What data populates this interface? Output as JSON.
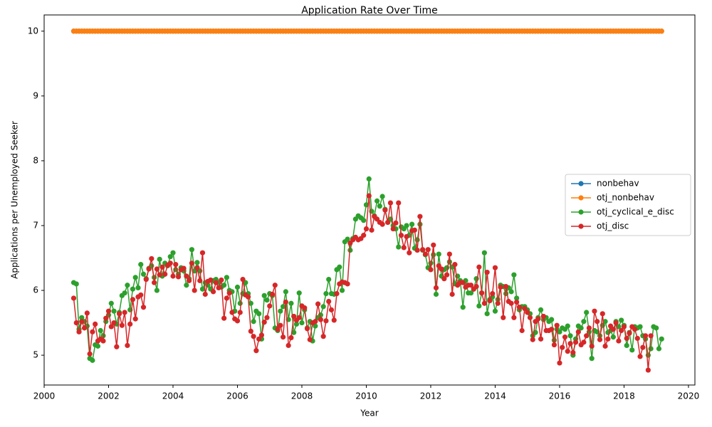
{
  "chart_data": {
    "type": "line",
    "title": "Application Rate Over Time",
    "xlabel": "Year",
    "ylabel": "Applications per Unemployed Seeker",
    "xlim": [
      2000,
      2020.2
    ],
    "ylim": [
      4.54,
      10.25
    ],
    "x_ticks": [
      2000,
      2002,
      2004,
      2006,
      2008,
      2010,
      2012,
      2014,
      2016,
      2018,
      2020
    ],
    "y_ticks": [
      5,
      6,
      7,
      8,
      9,
      10
    ],
    "legend_position": "center-right",
    "grid": false,
    "markers": true,
    "x_start": 2000.917,
    "x_step": 0.08333,
    "series": [
      {
        "name": "nonbehav",
        "color": "#1f77b4",
        "constant": 10.0
      },
      {
        "name": "otj_nonbehav",
        "color": "#ff7f0e",
        "constant": 10.0
      },
      {
        "name": "otj_cyclical_e_disc",
        "color": "#2ca02c",
        "values": [
          6.12,
          6.1,
          5.4,
          5.58,
          5.52,
          5.45,
          4.95,
          4.92,
          5.16,
          5.14,
          5.38,
          5.3,
          5.52,
          5.62,
          5.8,
          5.68,
          5.48,
          5.66,
          5.92,
          5.96,
          6.08,
          5.7,
          6.02,
          6.2,
          6.04,
          6.4,
          6.25,
          6.18,
          6.34,
          6.38,
          6.2,
          6.0,
          6.48,
          6.22,
          6.42,
          6.38,
          6.52,
          6.58,
          6.32,
          6.25,
          6.35,
          6.3,
          6.08,
          6.18,
          6.63,
          6.3,
          6.43,
          6.3,
          6.02,
          6.12,
          6.08,
          6.02,
          6.15,
          6.17,
          6.12,
          6.05,
          6.08,
          6.2,
          6.0,
          5.98,
          5.68,
          6.05,
          5.8,
          5.95,
          6.12,
          5.95,
          5.8,
          5.52,
          5.68,
          5.64,
          5.25,
          5.92,
          5.85,
          5.95,
          5.92,
          5.42,
          5.38,
          5.68,
          5.75,
          5.98,
          5.55,
          5.8,
          5.35,
          5.48,
          5.96,
          5.5,
          5.7,
          5.42,
          5.52,
          5.22,
          5.45,
          5.58,
          5.62,
          5.75,
          5.95,
          6.17,
          5.95,
          5.94,
          6.32,
          6.36,
          6.0,
          6.75,
          6.79,
          6.62,
          6.8,
          7.1,
          7.15,
          7.12,
          7.08,
          7.32,
          7.72,
          7.22,
          7.15,
          7.38,
          7.3,
          7.45,
          7.25,
          7.05,
          7.1,
          7.0,
          6.95,
          6.67,
          6.98,
          6.95,
          7.0,
          6.85,
          7.02,
          6.65,
          6.78,
          7.02,
          6.62,
          6.55,
          6.35,
          6.42,
          6.55,
          5.94,
          6.56,
          6.22,
          6.32,
          6.35,
          6.44,
          6.36,
          6.1,
          6.22,
          6.15,
          5.74,
          6.15,
          5.96,
          5.96,
          6.02,
          6.18,
          5.76,
          5.96,
          6.58,
          5.64,
          5.86,
          5.9,
          5.68,
          5.86,
          6.08,
          6.06,
          5.95,
          6.04,
          5.98,
          6.24,
          5.88,
          5.7,
          5.75,
          5.75,
          5.7,
          5.64,
          5.3,
          5.35,
          5.58,
          5.7,
          5.55,
          5.58,
          5.52,
          5.55,
          5.23,
          5.4,
          5.36,
          5.42,
          5.4,
          5.45,
          5.3,
          5.0,
          5.25,
          5.45,
          5.42,
          5.52,
          5.66,
          5.36,
          4.95,
          5.38,
          5.36,
          5.3,
          5.46,
          5.52,
          5.35,
          5.38,
          5.28,
          5.52,
          5.44,
          5.54,
          5.46,
          5.15,
          5.35,
          5.08,
          5.44,
          5.42,
          5.44,
          5.3,
          5.25,
          5.0,
          5.1,
          5.44,
          5.42,
          5.1,
          5.25
        ]
      },
      {
        "name": "otj_disc",
        "color": "#d62728",
        "values": [
          5.88,
          5.5,
          5.36,
          5.52,
          5.42,
          5.65,
          5.02,
          5.36,
          5.48,
          5.22,
          5.25,
          5.22,
          5.57,
          5.68,
          5.44,
          5.5,
          5.13,
          5.64,
          5.46,
          5.66,
          5.15,
          5.48,
          5.86,
          5.56,
          5.9,
          5.93,
          5.74,
          6.17,
          6.33,
          6.49,
          6.12,
          6.33,
          6.24,
          6.36,
          6.25,
          6.39,
          6.42,
          6.22,
          6.4,
          6.21,
          6.32,
          6.34,
          6.22,
          6.15,
          6.42,
          6.0,
          6.35,
          6.15,
          6.58,
          5.94,
          6.14,
          6.16,
          5.98,
          6.12,
          6.04,
          6.16,
          5.57,
          5.88,
          5.96,
          5.66,
          5.56,
          5.53,
          5.66,
          6.17,
          5.93,
          5.9,
          5.37,
          5.29,
          5.07,
          5.25,
          5.31,
          5.51,
          5.58,
          5.76,
          5.94,
          6.08,
          5.4,
          5.46,
          5.28,
          5.82,
          5.15,
          5.27,
          5.6,
          5.54,
          5.58,
          5.76,
          5.73,
          5.41,
          5.24,
          5.5,
          5.52,
          5.79,
          5.55,
          5.29,
          5.53,
          5.83,
          5.7,
          5.54,
          5.95,
          6.1,
          6.13,
          6.12,
          6.1,
          6.73,
          6.78,
          6.82,
          6.78,
          6.8,
          6.85,
          6.95,
          7.46,
          6.93,
          7.14,
          7.1,
          7.05,
          7.02,
          7.24,
          7.05,
          7.35,
          6.95,
          7.04,
          7.35,
          6.85,
          6.66,
          6.83,
          6.58,
          6.92,
          6.93,
          6.62,
          7.14,
          6.63,
          6.56,
          6.63,
          6.32,
          6.7,
          6.04,
          6.38,
          6.33,
          6.18,
          6.24,
          6.56,
          5.94,
          6.4,
          6.08,
          6.12,
          6.12,
          6.05,
          6.08,
          6.08,
          6.02,
          6.06,
          6.36,
          5.96,
          5.8,
          6.28,
          5.84,
          5.95,
          6.35,
          5.8,
          6.05,
          5.58,
          6.06,
          5.83,
          5.8,
          5.58,
          5.82,
          5.74,
          5.38,
          5.72,
          5.66,
          5.58,
          5.24,
          5.52,
          5.56,
          5.25,
          5.6,
          5.38,
          5.38,
          5.4,
          5.16,
          5.46,
          4.88,
          5.12,
          5.28,
          5.06,
          5.18,
          5.04,
          5.2,
          5.36,
          5.16,
          5.2,
          5.3,
          5.42,
          5.14,
          5.68,
          5.52,
          5.24,
          5.64,
          5.14,
          5.25,
          5.45,
          5.4,
          5.5,
          5.22,
          5.38,
          5.44,
          5.26,
          5.34,
          5.44,
          5.4,
          5.26,
          4.98,
          5.12,
          5.3,
          4.77,
          5.3
        ]
      }
    ]
  }
}
